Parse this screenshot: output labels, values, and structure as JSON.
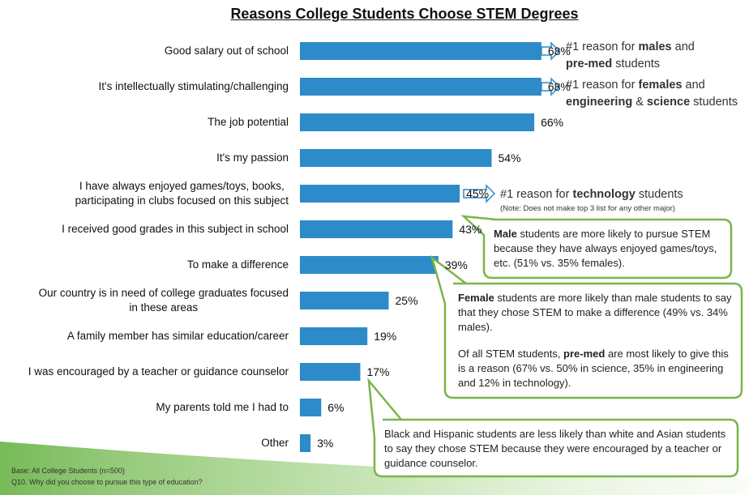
{
  "chart_data": {
    "type": "bar",
    "orientation": "horizontal",
    "title": "Reasons College Students Choose STEM Degrees",
    "categories": [
      "Good salary out of school",
      "It's intellectually stimulating/challenging",
      "The job potential",
      "It's my passion",
      "I have always enjoyed games/toys, books,\nparticipating in clubs focused on this subject",
      "I received good grades in this subject in school",
      "To make a difference",
      "Our country is in need of college graduates focused\nin these areas",
      "A family member has similar education/career",
      "I was encouraged by a teacher or guidance counselor",
      "My parents told me I had to",
      "Other"
    ],
    "values": [
      68,
      68,
      66,
      54,
      45,
      43,
      39,
      25,
      19,
      17,
      6,
      3
    ],
    "value_labels": [
      "68%",
      "68%",
      "66%",
      "54%",
      "45%",
      "43%",
      "39%",
      "25%",
      "19%",
      "17%",
      "6%",
      "3%"
    ],
    "color": "#2e8bc9",
    "annotations": [
      {
        "runs": [
          {
            "text": "#1 reason for "
          },
          {
            "text": "males",
            "bold": true
          },
          {
            "text": " and "
          },
          {
            "text": "pre-med",
            "bold": true
          },
          {
            "text": " students"
          }
        ]
      },
      {
        "runs": [
          {
            "text": "#1 reason for "
          },
          {
            "text": "females",
            "bold": true
          },
          {
            "text": " and "
          },
          {
            "text": "engineering",
            "bold": true
          },
          {
            "text": " & "
          },
          {
            "text": "science",
            "bold": true
          },
          {
            "text": " students"
          }
        ]
      },
      {
        "runs": [
          {
            "text": "#1 reason for "
          },
          {
            "text": "technology",
            "bold": true
          },
          {
            "text": " students"
          }
        ]
      },
      {
        "runs": [
          {
            "text": "Male",
            "bold": true
          },
          {
            "text": " students are more likely to pursue STEM because they have always enjoyed games/toys, etc. (51% vs. 35% females)."
          }
        ]
      },
      {
        "runs": [
          {
            "text": "Female",
            "bold": true
          },
          {
            "text": " students are more likely than male students to say that they chose STEM to make a difference (49% vs. 34% males)."
          }
        ]
      },
      {
        "runs": [
          {
            "text": "Of all STEM students, "
          },
          {
            "text": "pre-med",
            "bold": true
          },
          {
            "text": " are most likely to give this is a reason (67% vs. 50% in science, 35% in engineering and 12% in technology)."
          }
        ]
      },
      {
        "runs": [
          {
            "text": "Black and Hispanic students are less likely than white and Asian students to say they chose STEM because they were encouraged by a teacher or guidance counselor."
          }
        ]
      }
    ],
    "note": "(Note: Does not make top 3 list for any other major)",
    "footnotes": [
      "Base: All College Students (n=500)",
      "Q10. Why did you choose to pursue this type of education?"
    ]
  }
}
